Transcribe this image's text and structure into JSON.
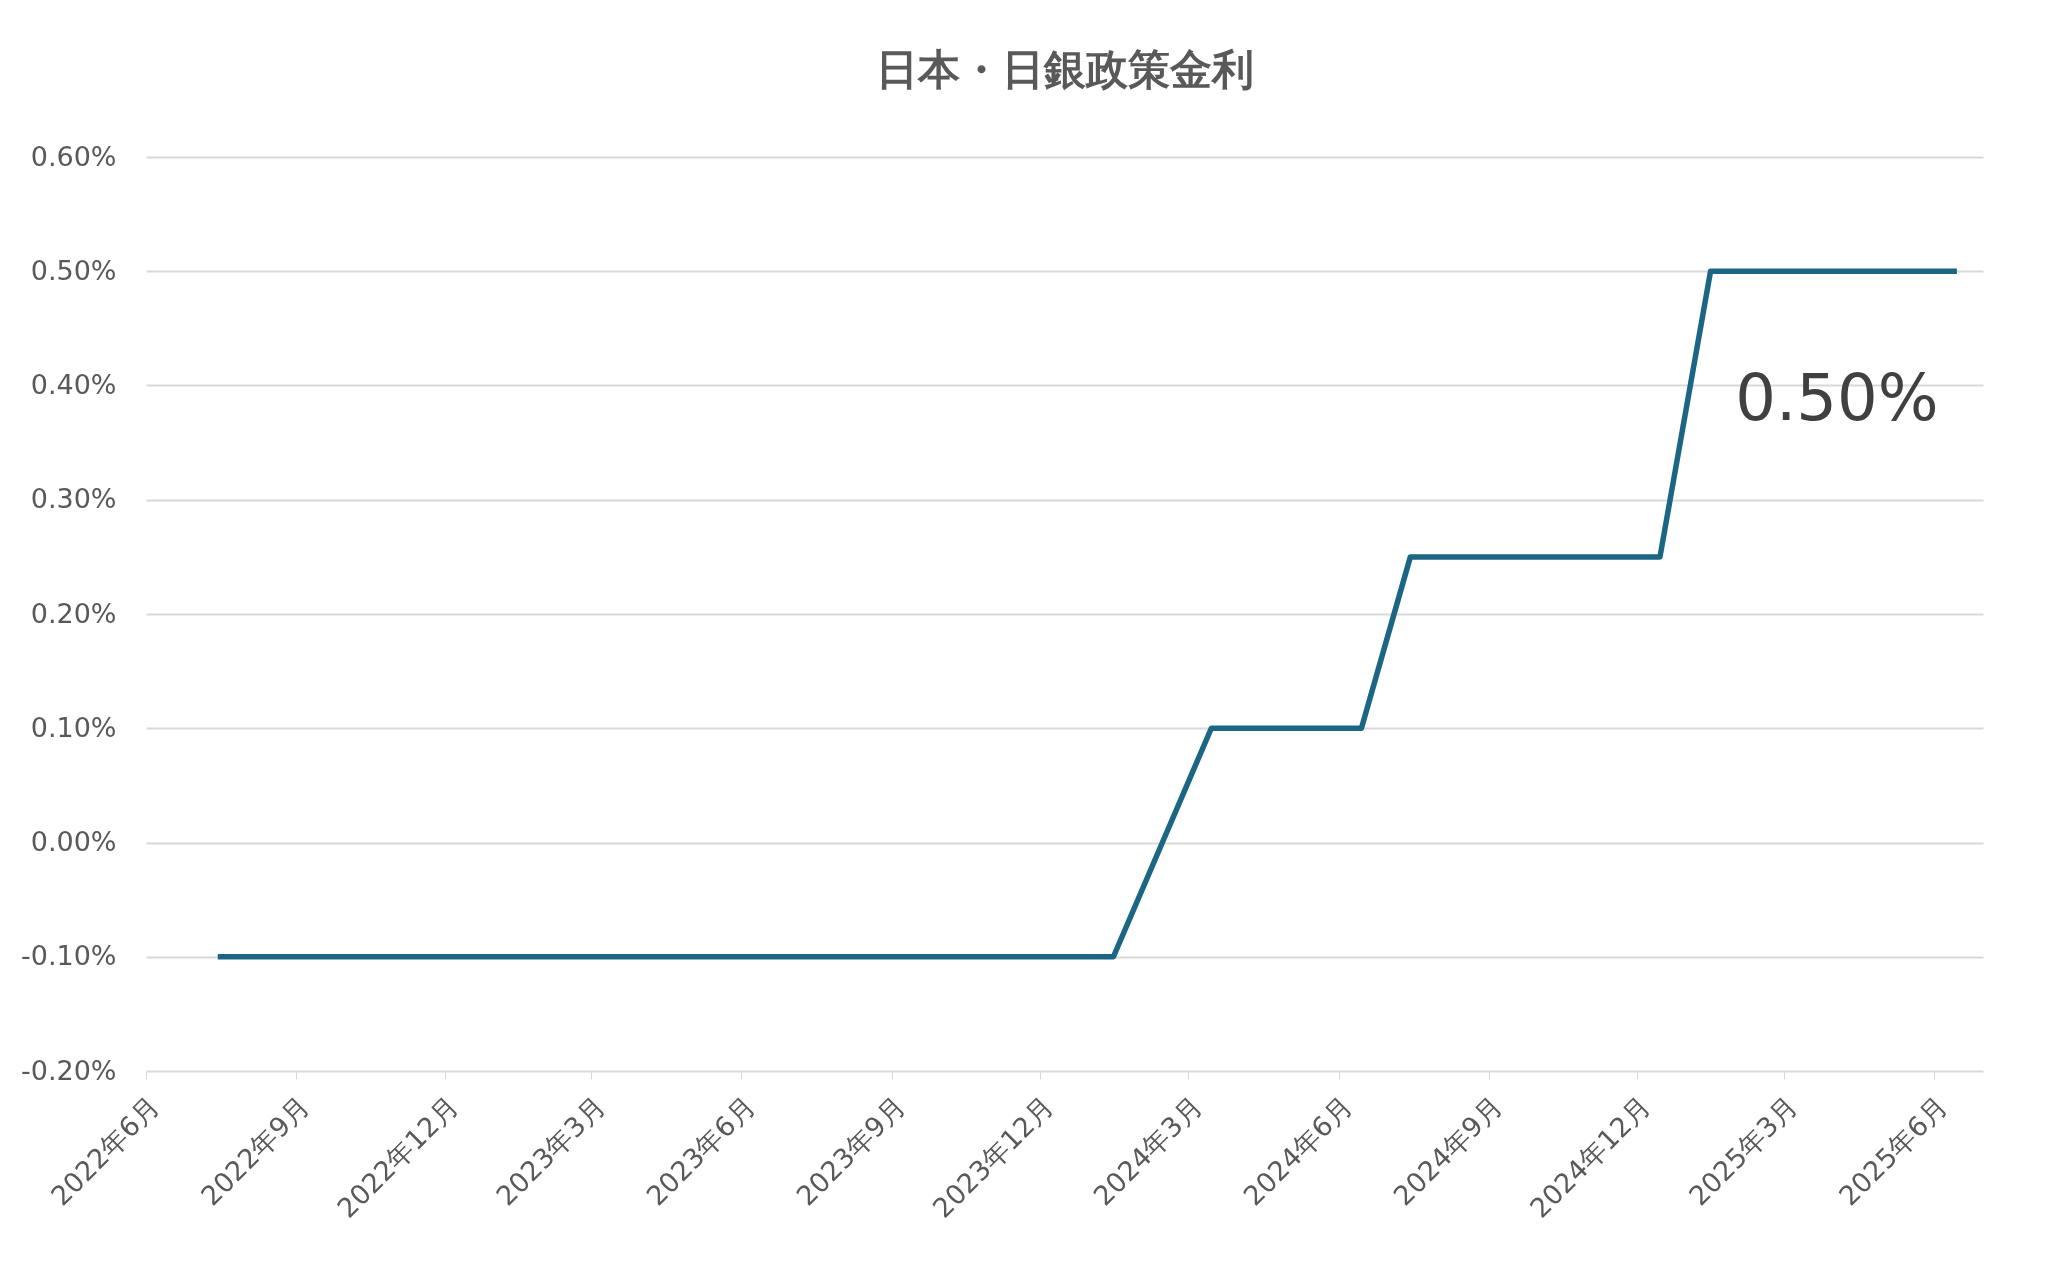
{
  "chart_data": {
    "type": "line",
    "title": "日本・日銀政策金利",
    "x": [
      "2022-07-15",
      "2024-01-15",
      "2024-03-15",
      "2024-06-15",
      "2024-07-15",
      "2024-12-15",
      "2025-01-15",
      "2025-06-15"
    ],
    "series": [
      {
        "color": "#1b6585",
        "values": [
          -0.1,
          -0.1,
          0.1,
          0.1,
          0.25,
          0.25,
          0.5,
          0.5
        ]
      }
    ],
    "xlim": [
      "2022-06-01",
      "2025-07-01"
    ],
    "xticks": [
      {
        "value": "2022-06-01",
        "label": "2022年6月"
      },
      {
        "value": "2022-09-01",
        "label": "2022年9月"
      },
      {
        "value": "2022-12-01",
        "label": "2022年12月"
      },
      {
        "value": "2023-03-01",
        "label": "2023年3月"
      },
      {
        "value": "2023-06-01",
        "label": "2023年6月"
      },
      {
        "value": "2023-09-01",
        "label": "2023年9月"
      },
      {
        "value": "2023-12-01",
        "label": "2023年12月"
      },
      {
        "value": "2024-03-01",
        "label": "2024年3月"
      },
      {
        "value": "2024-06-01",
        "label": "2024年6月"
      },
      {
        "value": "2024-09-01",
        "label": "2024年9月"
      },
      {
        "value": "2024-12-01",
        "label": "2024年12月"
      },
      {
        "value": "2025-03-01",
        "label": "2025年3月"
      },
      {
        "value": "2025-06-01",
        "label": "2025年6月"
      }
    ],
    "ylim": [
      -0.2,
      0.6
    ],
    "yticks": [
      {
        "value": -0.2,
        "label": "-0.20%"
      },
      {
        "value": -0.1,
        "label": "-0.10%"
      },
      {
        "value": 0,
        "label": "0.00%"
      },
      {
        "value": 0.1,
        "label": "0.10%"
      },
      {
        "value": 0.2,
        "label": "0.20%"
      },
      {
        "value": 0.3,
        "label": "0.30%"
      },
      {
        "value": 0.4,
        "label": "0.40%"
      },
      {
        "value": 0.5,
        "label": "0.50%"
      },
      {
        "value": 0.6,
        "label": "0.60%"
      }
    ],
    "grid": "y",
    "annotations": [
      {
        "text": "0.50%",
        "x": "2025-06-15",
        "y": 0.5
      }
    ]
  }
}
